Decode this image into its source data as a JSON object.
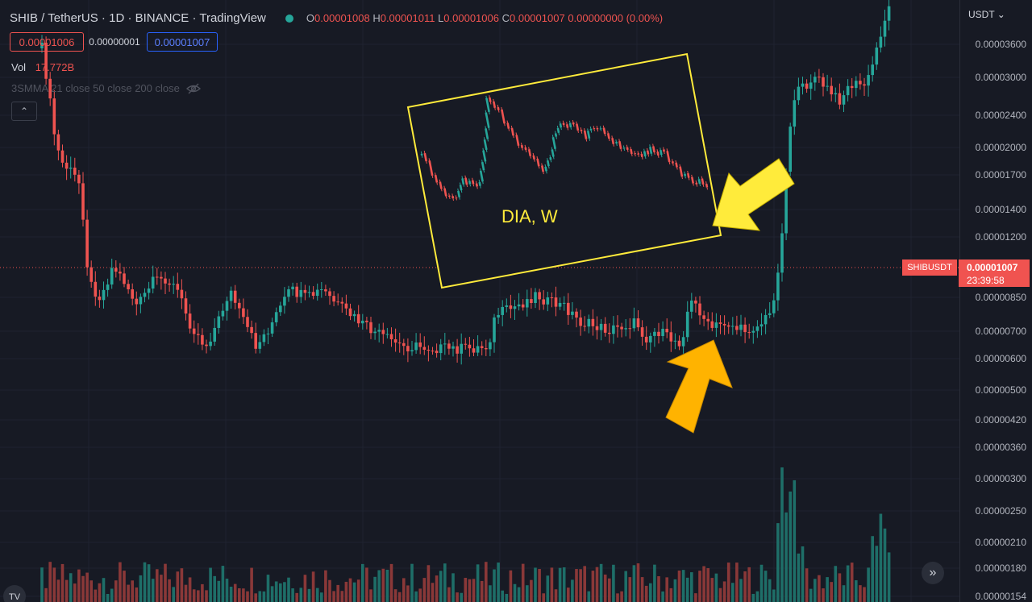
{
  "header": {
    "symbol": "SHIB / TetherUS · 1D · BINANCE · TradingView",
    "o_label": "O",
    "o_value": "0.00001008",
    "h_label": "H",
    "h_value": "0.00001011",
    "l_label": "L",
    "l_value": "0.00001006",
    "c_label": "C",
    "c_value": "0.00001007",
    "change": "0.00000000 (0.00%)"
  },
  "trade": {
    "sell": "0.00001006",
    "spread": "0.00000001",
    "buy": "0.00001007"
  },
  "volume": {
    "label": "Vol",
    "value": "17.772B"
  },
  "indicator": {
    "label": "3SMMA 21 close 50 close 200 close"
  },
  "price_scale": {
    "currency": "USDT",
    "ticks": [
      "0.00003600",
      "0.00003000",
      "0.00002400",
      "0.00002000",
      "0.00001700",
      "0.00001400",
      "0.00001200",
      "0.00000850",
      "0.00000700",
      "0.00000600",
      "0.00000500",
      "0.00000420",
      "0.00000360",
      "0.00000300",
      "0.00000250",
      "0.00000210",
      "0.00000180",
      "0.00000154"
    ]
  },
  "current": {
    "symbol": "SHIBUSDT",
    "price": "0.00001007",
    "countdown": "23:39:58"
  },
  "annotation": {
    "text": "DIA, W"
  },
  "colors": {
    "up": "#26a69a",
    "down": "#ef5350",
    "bg": "#171a24",
    "box": "#ffeb3b",
    "arrow_yellow": "#ffeb3b",
    "arrow_orange": "#ffb300"
  }
}
